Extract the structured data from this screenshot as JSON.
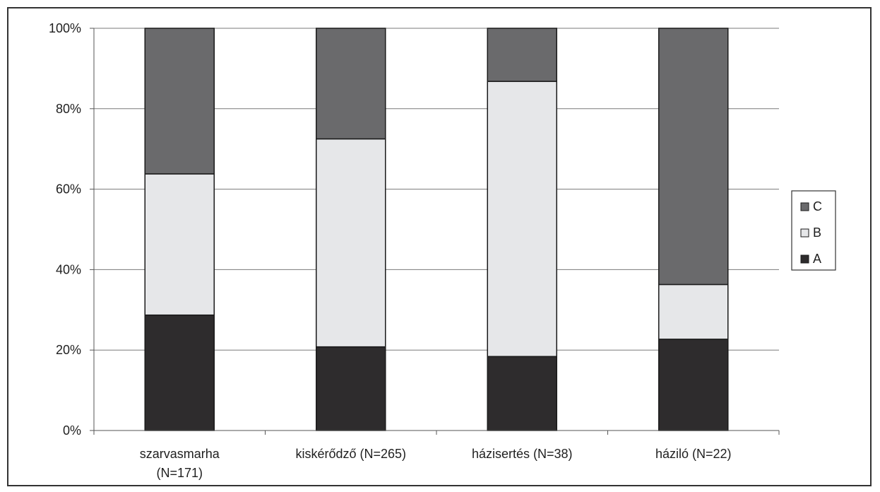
{
  "chart_data": {
    "type": "bar",
    "stacked": true,
    "percent_stacked": true,
    "categories": [
      [
        "szarvasmarha",
        "(N=171)"
      ],
      [
        "kiskérődző (N=265)"
      ],
      [
        "házisertés (N=38)"
      ],
      [
        "háziló (N=22)"
      ]
    ],
    "series": [
      {
        "name": "A",
        "color": "#2e2c2d",
        "values": [
          28.7,
          20.8,
          18.4,
          22.7
        ]
      },
      {
        "name": "B",
        "color": "#e6e7e9",
        "values": [
          35.1,
          51.7,
          68.4,
          13.6
        ]
      },
      {
        "name": "C",
        "color": "#6a6a6c",
        "values": [
          36.2,
          27.5,
          13.2,
          63.7
        ]
      }
    ],
    "yticks": [
      "0%",
      "20%",
      "40%",
      "60%",
      "80%",
      "100%"
    ],
    "ylim": [
      0,
      100
    ],
    "grid": true,
    "legend_position": "right",
    "legend_order": [
      "C",
      "B",
      "A"
    ]
  }
}
